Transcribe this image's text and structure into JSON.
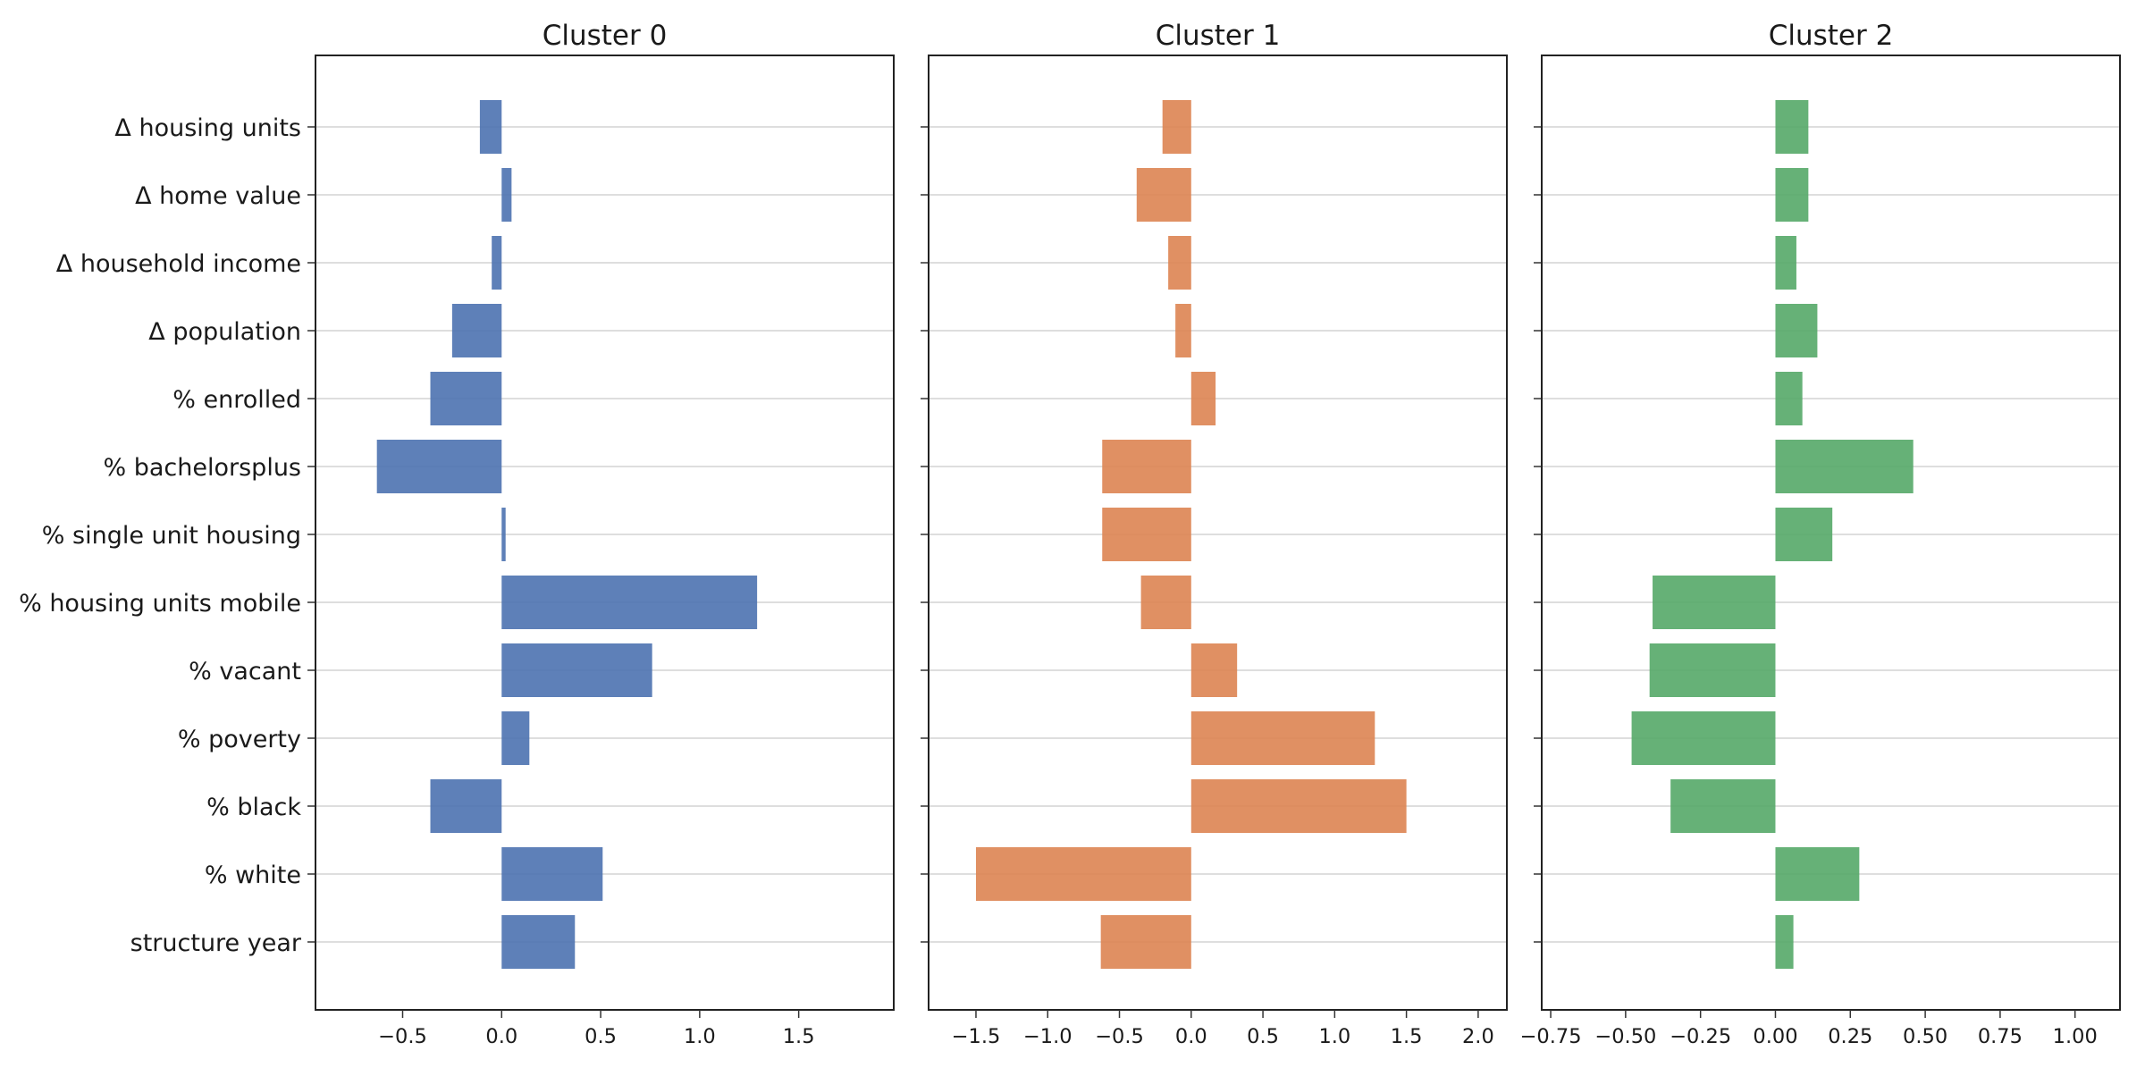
{
  "chart_data": {
    "type": "bar",
    "orientation": "horizontal",
    "grid": "horizontal",
    "categories": [
      "Δ housing units",
      "Δ home value",
      "Δ household income",
      "Δ population",
      "% enrolled",
      "% bachelorsplus",
      "% single unit housing",
      "% housing units mobile",
      "%  vacant",
      "% poverty",
      "%  black",
      "%  white",
      "structure year"
    ],
    "panels": [
      {
        "title": "Cluster 0",
        "color": "#4c72b0",
        "xlim": [
          -0.94,
          1.98
        ],
        "xticks": [
          -0.5,
          0.0,
          0.5,
          1.0,
          1.5
        ],
        "xtick_labels": [
          "−0.5",
          "0.0",
          "0.5",
          "1.0",
          "1.5"
        ],
        "values": [
          -0.11,
          0.05,
          -0.05,
          -0.25,
          -0.36,
          -0.63,
          0.02,
          1.29,
          0.76,
          0.14,
          -0.36,
          0.51,
          0.37
        ]
      },
      {
        "title": "Cluster 1",
        "color": "#dd8452",
        "xlim": [
          -1.83,
          2.2
        ],
        "xticks": [
          -1.5,
          -1.0,
          -0.5,
          0.0,
          0.5,
          1.0,
          1.5,
          2.0
        ],
        "xtick_labels": [
          "−1.5",
          "−1.0",
          "−0.5",
          "0.0",
          "0.5",
          "1.0",
          "1.5",
          "2.0"
        ],
        "values": [
          -0.2,
          -0.38,
          -0.16,
          -0.11,
          0.17,
          -0.62,
          -0.62,
          -0.35,
          0.32,
          1.28,
          1.5,
          -1.5,
          -0.63
        ]
      },
      {
        "title": "Cluster 2",
        "color": "#55a868",
        "xlim": [
          -0.78,
          1.15
        ],
        "xticks": [
          -0.75,
          -0.5,
          -0.25,
          0.0,
          0.25,
          0.5,
          0.75,
          1.0
        ],
        "xtick_labels": [
          "−0.75",
          "−0.50",
          "−0.25",
          "0.00",
          "0.25",
          "0.50",
          "0.75",
          "1.00"
        ],
        "values": [
          0.11,
          0.11,
          0.07,
          0.14,
          0.09,
          0.46,
          0.19,
          -0.41,
          -0.42,
          -0.48,
          -0.35,
          0.28,
          0.06
        ]
      }
    ]
  }
}
